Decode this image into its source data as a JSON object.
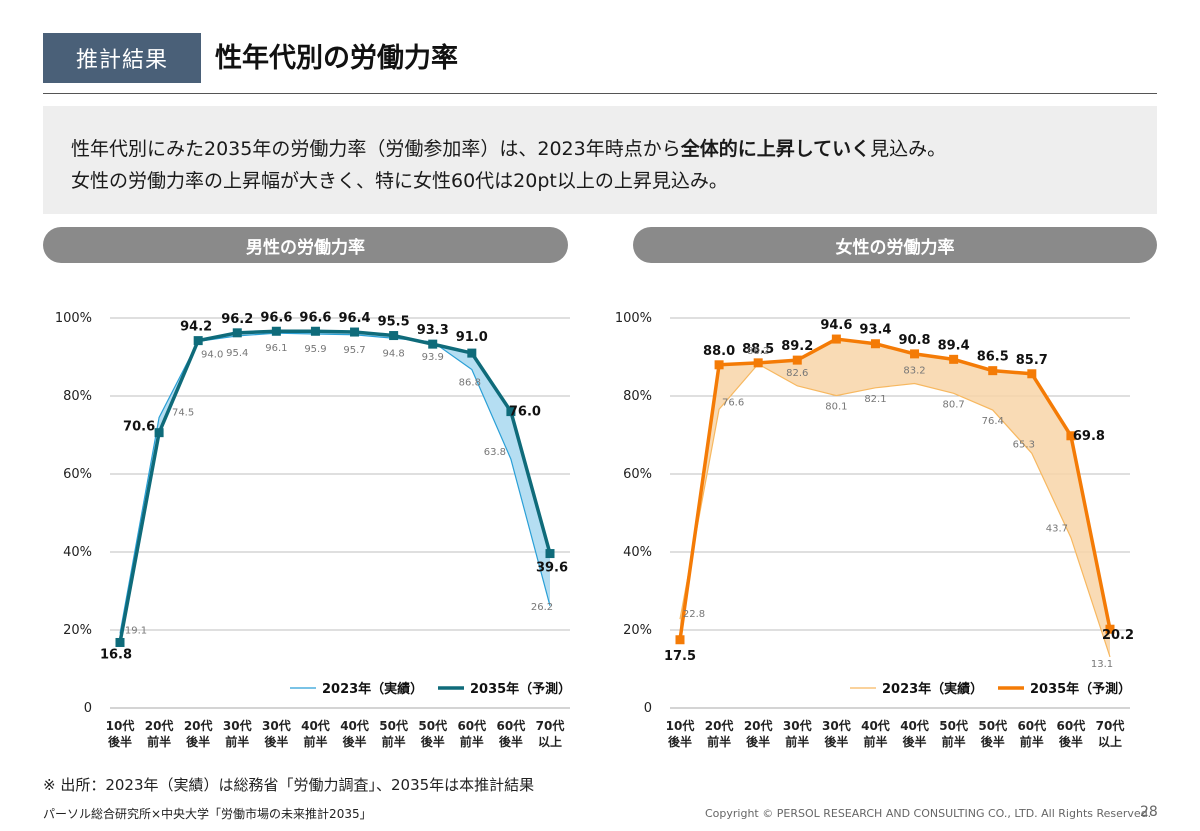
{
  "header": {
    "tag": "推計結果",
    "title": "性年代別の労働力率"
  },
  "summary": {
    "line1_a": "性年代別にみた2035年の労働力率（労働参加率）は、2023年時点から",
    "line1_b": "全体的に上昇していく",
    "line1_c": "見込み。",
    "line2": "女性の労働力率の上昇幅が大きく、特に女性60代は20pt以上の上昇見込み。"
  },
  "chart_data": [
    {
      "type": "line",
      "title": "男性の労働力率",
      "categories": [
        [
          "10代",
          "後半"
        ],
        [
          "20代",
          "前半"
        ],
        [
          "20代",
          "後半"
        ],
        [
          "30代",
          "前半"
        ],
        [
          "30代",
          "後半"
        ],
        [
          "40代",
          "前半"
        ],
        [
          "40代",
          "後半"
        ],
        [
          "50代",
          "前半"
        ],
        [
          "50代",
          "後半"
        ],
        [
          "60代",
          "前半"
        ],
        [
          "60代",
          "後半"
        ],
        [
          "70代",
          "以上"
        ]
      ],
      "series": [
        {
          "name": "2023年（実績）",
          "values": [
            "19.1",
            "74.5",
            "94.0",
            "95.4",
            "96.1",
            "95.9",
            "95.7",
            "94.8",
            "93.9",
            "86.8",
            "63.8",
            "26.2"
          ]
        },
        {
          "name": "2035年（予測）",
          "values": [
            "16.8",
            "70.6",
            "94.2",
            "96.2",
            "96.6",
            "96.6",
            "96.4",
            "95.5",
            "93.3",
            "91.0",
            "76.0",
            "39.6"
          ]
        }
      ],
      "yticks": [
        "0",
        "20%",
        "40%",
        "60%",
        "80%",
        "100%"
      ],
      "ylim": [
        0,
        100
      ],
      "legend_position": "bottom-right",
      "grid": true,
      "colors": {
        "actual": "#2a9fd6",
        "forecast": "#0f6b7a",
        "fill": "#a8d8f0"
      }
    },
    {
      "type": "line",
      "title": "女性の労働力率",
      "categories": [
        [
          "10代",
          "後半"
        ],
        [
          "20代",
          "前半"
        ],
        [
          "20代",
          "後半"
        ],
        [
          "30代",
          "前半"
        ],
        [
          "30代",
          "後半"
        ],
        [
          "40代",
          "前半"
        ],
        [
          "40代",
          "後半"
        ],
        [
          "50代",
          "前半"
        ],
        [
          "50代",
          "後半"
        ],
        [
          "60代",
          "前半"
        ],
        [
          "60代",
          "後半"
        ],
        [
          "70代",
          "以上"
        ]
      ],
      "series": [
        {
          "name": "2023年（実績）",
          "values": [
            "22.8",
            "76.6",
            "88.2",
            "82.6",
            "80.1",
            "82.1",
            "83.2",
            "80.7",
            "76.4",
            "65.3",
            "43.7",
            "13.1"
          ]
        },
        {
          "name": "2035年（予測）",
          "values": [
            "17.5",
            "88.0",
            "88.5",
            "89.2",
            "94.6",
            "93.4",
            "90.8",
            "89.4",
            "86.5",
            "85.7",
            "69.8",
            "20.2"
          ]
        }
      ],
      "yticks": [
        "0",
        "20%",
        "40%",
        "60%",
        "80%",
        "100%"
      ],
      "ylim": [
        0,
        100
      ],
      "legend_position": "bottom-right",
      "grid": true,
      "colors": {
        "actual": "#f7b860",
        "forecast": "#f47b06",
        "fill": "#f8d5a8"
      }
    }
  ],
  "footer": {
    "note": "※ 出所：2023年（実績）は総務省「労働力調査」、2035年は本推計結果",
    "source": "パーソル総合研究所×中央大学「労働市場の未来推計2035」",
    "copyright": "Copyright © PERSOL RESEARCH AND CONSULTING CO., LTD. All Rights Reserved.",
    "page": "28"
  }
}
